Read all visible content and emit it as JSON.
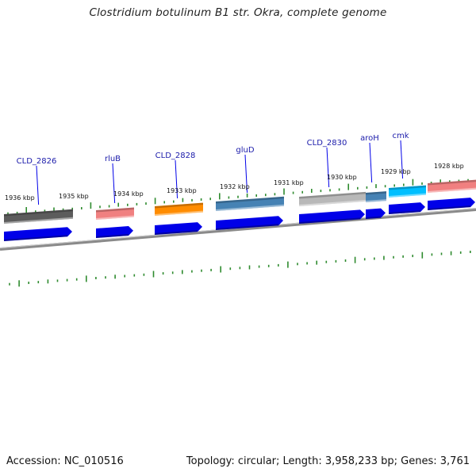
{
  "title": "Clostridium botulinum B1 str. Okra, complete genome",
  "footer": {
    "accession": "Accession: NC_010516",
    "summary": "Topology: circular; Length: 3,958,233 bp; Genes: 3,761"
  },
  "colors": {
    "cds_arrow": "#0000e8",
    "gene_label": "#1a1aaa",
    "tick": "#2e8b2e",
    "backbone": "#808080"
  },
  "kbp_ticks": [
    {
      "label": "1936 kbp"
    },
    {
      "label": "1935 kbp"
    },
    {
      "label": "1934 kbp"
    },
    {
      "label": "1933 kbp"
    },
    {
      "label": "1932 kbp"
    },
    {
      "label": "1931 kbp"
    },
    {
      "label": "1930 kbp"
    },
    {
      "label": "1929 kbp"
    },
    {
      "label": "1928 kbp"
    }
  ],
  "genes": [
    {
      "label": "CLD_2826",
      "color": "#5c5c5c"
    },
    {
      "label": "rluB",
      "color": "#f08080"
    },
    {
      "label": "CLD_2828",
      "color": "#ff8c00"
    },
    {
      "label": "gluD",
      "color": "#4682b4"
    },
    {
      "label": "CLD_2830",
      "color": "#b8b8b8"
    },
    {
      "label": "aroH",
      "color": "#4682b4"
    },
    {
      "label": "cmk",
      "color": "#00bfff"
    },
    {
      "label": "",
      "color": "#f08080"
    }
  ]
}
